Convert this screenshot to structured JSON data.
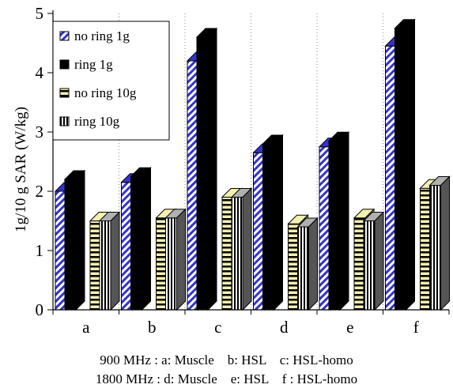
{
  "chart_data": {
    "type": "bar",
    "categories": [
      "a",
      "b",
      "c",
      "d",
      "e",
      "f"
    ],
    "series": [
      {
        "name": "no ring 1g",
        "values": [
          2.0,
          2.15,
          4.2,
          2.65,
          2.75,
          4.45
        ]
      },
      {
        "name": "ring 1g",
        "values": [
          2.2,
          2.25,
          4.6,
          2.8,
          2.85,
          4.75
        ]
      },
      {
        "name": "no ring 10g",
        "values": [
          1.5,
          1.55,
          1.9,
          1.45,
          1.55,
          2.05
        ]
      },
      {
        "name": "ring 10g",
        "values": [
          1.5,
          1.55,
          1.9,
          1.4,
          1.5,
          2.1
        ]
      }
    ],
    "title": "",
    "xlabel": "",
    "ylabel": "1g/10 g SAR (W/kg)",
    "ylim": [
      0,
      5
    ],
    "yticks": [
      0,
      1,
      2,
      3,
      4,
      5
    ],
    "grid": "vertical dotted",
    "legend": "top-left",
    "style": "3d-clustered-column",
    "colors": {
      "no ring 1g": "#3333cc",
      "ring 1g": "#000000",
      "no ring 10g": "#f3f0b0",
      "ring 10g": "#808080"
    }
  },
  "captions": [
    "900 MHz : a: Muscle    b: HSL    c: HSL-homo",
    "1800 MHz : d: Muscle    e: HSL    f : HSL-homo"
  ]
}
